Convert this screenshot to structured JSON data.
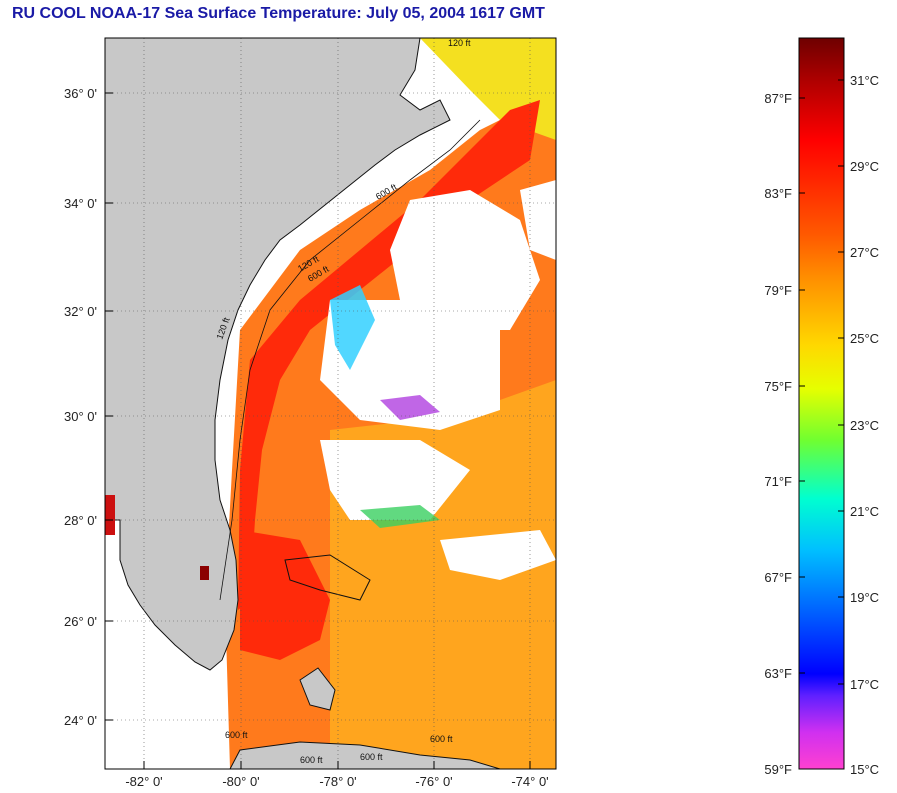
{
  "title": "RU COOL  NOAA-17  Sea Surface Temperature:  July 05, 2004 1617 GMT",
  "map": {
    "lat_labels": [
      "36° 0'",
      "34° 0'",
      "32° 0'",
      "30° 0'",
      "28° 0'",
      "26° 0'",
      "24° 0'"
    ],
    "lon_labels": [
      "-82° 0'",
      "-80° 0'",
      "-78° 0'",
      "-76° 0'",
      "-74° 0'"
    ],
    "contour_labels": [
      "120 ft",
      "600 ft",
      "120 ft",
      "600 ft",
      "120 ft",
      "600 ft",
      "600 ft",
      "600 ft",
      "600 ft"
    ],
    "colors": {
      "land": "#c8c8c8",
      "cloud": "#ffffff",
      "warm": "#ff6a1a",
      "core": "#ff2a0a"
    }
  },
  "colorbar": {
    "fahrenheit_labels": [
      "87°F",
      "83°F",
      "79°F",
      "75°F",
      "71°F",
      "67°F",
      "63°F",
      "59°F"
    ],
    "celsius_labels": [
      "31°C",
      "29°C",
      "27°C",
      "25°C",
      "23°C",
      "21°C",
      "19°C",
      "17°C",
      "15°C"
    ]
  }
}
